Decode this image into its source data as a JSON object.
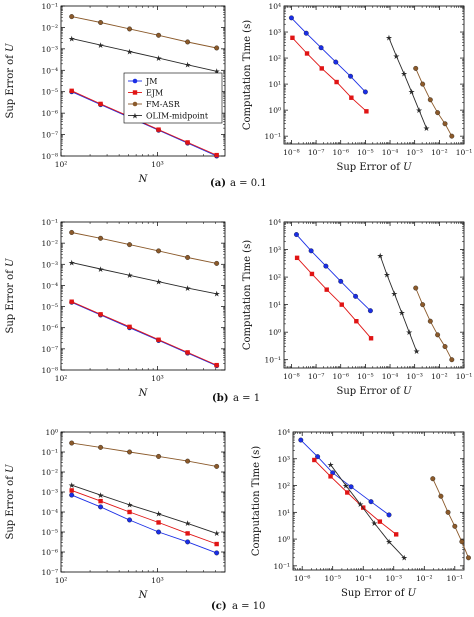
{
  "colors": {
    "JM": "#1a2ee6",
    "EJM": "#e01414",
    "FM-ASR": "#8b5a2b",
    "OLIM-midpoint": "#2a2a2a"
  },
  "legend": [
    "JM",
    "EJM",
    "FM-ASR",
    "OLIM-midpoint"
  ],
  "chart_data": [
    {
      "panel": "a-left",
      "type": "line",
      "xscale": "log",
      "yscale": "log",
      "xlim": [
        100,
        5000
      ],
      "ylim": [
        1e-08,
        0.1
      ],
      "xlabel": "N",
      "ylabel": "Sup Error of U",
      "xticks": [
        100,
        1000
      ],
      "yticks": [
        1e-08,
        1e-07,
        1e-06,
        1e-05,
        0.0001,
        0.001,
        0.01,
        0.1
      ],
      "legend_position": "center-right",
      "series": [
        {
          "name": "JM",
          "x": [
            129,
            257,
            513,
            1025,
            2049,
            4097
          ],
          "y": [
            1e-05,
            2.5e-06,
            6.3e-07,
            1.6e-07,
            4e-08,
            1e-08
          ]
        },
        {
          "name": "EJM",
          "x": [
            129,
            257,
            513,
            1025,
            2049,
            4097
          ],
          "y": [
            1.1e-05,
            2.7e-06,
            6.8e-07,
            1.7e-07,
            4.3e-08,
            1.1e-08
          ]
        },
        {
          "name": "FM-ASR",
          "x": [
            129,
            257,
            513,
            1025,
            2049,
            4097
          ],
          "y": [
            0.032,
            0.017,
            0.0085,
            0.0043,
            0.0021,
            0.0011
          ]
        },
        {
          "name": "OLIM-midpoint",
          "x": [
            129,
            257,
            513,
            1025,
            2049,
            4097
          ],
          "y": [
            0.003,
            0.0015,
            0.00075,
            0.00037,
            0.00018,
            9e-05
          ]
        }
      ]
    },
    {
      "panel": "a-right",
      "type": "line",
      "xscale": "log",
      "yscale": "log",
      "xlim": [
        5e-09,
        0.1
      ],
      "ylim": [
        0.05,
        10000
      ],
      "xlabel": "Sup Error of U",
      "ylabel": "Computation Time (s)",
      "xticks": [
        1e-08,
        1e-07,
        1e-06,
        1e-05,
        0.0001,
        0.001,
        0.01,
        0.1
      ],
      "yticks": [
        0.1,
        1,
        10,
        100,
        1000,
        10000
      ],
      "series": [
        {
          "name": "JM",
          "x": [
            1e-08,
            4e-08,
            1.6e-07,
            6.3e-07,
            2.5e-06,
            1e-05
          ],
          "y": [
            3500,
            900,
            250,
            70,
            20,
            5
          ]
        },
        {
          "name": "EJM",
          "x": [
            1.1e-08,
            4.3e-08,
            1.7e-07,
            6.8e-07,
            2.7e-06,
            1.1e-05
          ],
          "y": [
            600,
            150,
            40,
            12,
            3,
            0.9
          ]
        },
        {
          "name": "FM-ASR",
          "x": [
            0.0011,
            0.0021,
            0.0043,
            0.0085,
            0.017,
            0.032
          ],
          "y": [
            40,
            10,
            2.5,
            0.8,
            0.3,
            0.1
          ]
        },
        {
          "name": "OLIM-midpoint",
          "x": [
            9e-05,
            0.00018,
            0.00037,
            0.00075,
            0.0015,
            0.003
          ],
          "y": [
            600,
            120,
            25,
            5,
            1.0,
            0.2
          ]
        }
      ]
    },
    {
      "panel": "b-left",
      "type": "line",
      "xscale": "log",
      "yscale": "log",
      "xlim": [
        100,
        5000
      ],
      "ylim": [
        1e-08,
        0.1
      ],
      "xlabel": "N",
      "ylabel": "Sup Error of U",
      "xticks": [
        100,
        1000
      ],
      "yticks": [
        1e-08,
        1e-07,
        1e-06,
        1e-05,
        0.0001,
        0.001,
        0.01,
        0.1
      ],
      "series": [
        {
          "name": "JM",
          "x": [
            129,
            257,
            513,
            1025,
            2049,
            4097
          ],
          "y": [
            1.6e-05,
            4e-06,
            1e-06,
            2.5e-07,
            6.3e-08,
            1.6e-08
          ]
        },
        {
          "name": "EJM",
          "x": [
            129,
            257,
            513,
            1025,
            2049,
            4097
          ],
          "y": [
            1.7e-05,
            4.3e-06,
            1.1e-06,
            2.7e-07,
            6.8e-08,
            1.7e-08
          ]
        },
        {
          "name": "FM-ASR",
          "x": [
            129,
            257,
            513,
            1025,
            2049,
            4097
          ],
          "y": [
            0.032,
            0.017,
            0.0085,
            0.0043,
            0.0021,
            0.0011
          ]
        },
        {
          "name": "OLIM-midpoint",
          "x": [
            129,
            257,
            513,
            1025,
            2049,
            4097
          ],
          "y": [
            0.0012,
            0.0006,
            0.0003,
            0.00015,
            7.5e-05,
            4e-05
          ]
        }
      ]
    },
    {
      "panel": "b-right",
      "type": "line",
      "xscale": "log",
      "yscale": "log",
      "xlim": [
        5e-09,
        0.1
      ],
      "ylim": [
        0.05,
        10000
      ],
      "xlabel": "Sup Error of U",
      "ylabel": "Computation Time (s)",
      "xticks": [
        1e-08,
        1e-07,
        1e-06,
        1e-05,
        0.0001,
        0.001,
        0.01,
        0.1
      ],
      "yticks": [
        0.1,
        1,
        10,
        100,
        1000,
        10000
      ],
      "series": [
        {
          "name": "JM",
          "x": [
            1.6e-08,
            6.3e-08,
            2.5e-07,
            1e-06,
            4e-06,
            1.6e-05
          ],
          "y": [
            3500,
            900,
            250,
            70,
            20,
            6
          ]
        },
        {
          "name": "EJM",
          "x": [
            1.7e-08,
            6.8e-08,
            2.7e-07,
            1.1e-06,
            4.3e-06,
            1.7e-05
          ],
          "y": [
            500,
            130,
            35,
            10,
            2.5,
            0.6
          ]
        },
        {
          "name": "FM-ASR",
          "x": [
            0.0011,
            0.0021,
            0.0043,
            0.0085,
            0.017,
            0.032
          ],
          "y": [
            40,
            10,
            2.5,
            0.8,
            0.3,
            0.1
          ]
        },
        {
          "name": "OLIM-midpoint",
          "x": [
            4e-05,
            7.5e-05,
            0.00015,
            0.0003,
            0.0006,
            0.0012
          ],
          "y": [
            600,
            120,
            25,
            5,
            1.0,
            0.2
          ]
        }
      ]
    },
    {
      "panel": "c-left",
      "type": "line",
      "xscale": "log",
      "yscale": "log",
      "xlim": [
        100,
        5000
      ],
      "ylim": [
        1e-07,
        1
      ],
      "xlabel": "N",
      "ylabel": "Sup Error of U",
      "xticks": [
        100,
        1000
      ],
      "yticks": [
        1e-07,
        1e-06,
        1e-05,
        0.0001,
        0.001,
        0.01,
        0.1,
        1
      ],
      "series": [
        {
          "name": "JM",
          "x": [
            129,
            257,
            513,
            1025,
            2049,
            4097
          ],
          "y": [
            0.0007,
            0.00018,
            4e-05,
            1e-05,
            3.2e-06,
            9e-07
          ]
        },
        {
          "name": "EJM",
          "x": [
            129,
            257,
            513,
            1025,
            2049,
            4097
          ],
          "y": [
            0.0012,
            0.00035,
            0.0001,
            3e-05,
            8.5e-06,
            2.5e-06
          ]
        },
        {
          "name": "FM-ASR",
          "x": [
            129,
            257,
            513,
            1025,
            2049,
            4097
          ],
          "y": [
            0.28,
            0.17,
            0.1,
            0.06,
            0.035,
            0.019
          ]
        },
        {
          "name": "OLIM-midpoint",
          "x": [
            129,
            257,
            513,
            1025,
            2049,
            4097
          ],
          "y": [
            0.0022,
            0.0007,
            0.00023,
            8e-05,
            2.7e-05,
            8.5e-06
          ]
        }
      ]
    },
    {
      "panel": "c-right",
      "type": "line",
      "xscale": "log",
      "yscale": "log",
      "xlim": [
        5e-07,
        0.2
      ],
      "ylim": [
        0.07,
        10000
      ],
      "xlabel": "Sup Error of U",
      "ylabel": "Computation Time (s)",
      "xticks": [
        1e-06,
        1e-05,
        0.0001,
        0.001,
        0.01,
        0.1
      ],
      "yticks": [
        0.1,
        1,
        10,
        100,
        1000,
        10000
      ],
      "series": [
        {
          "name": "JM",
          "x": [
            9e-07,
            3.2e-06,
            1e-05,
            4e-05,
            0.00018,
            0.0007
          ],
          "y": [
            5000,
            1200,
            300,
            90,
            25,
            8
          ]
        },
        {
          "name": "EJM",
          "x": [
            2.5e-06,
            8.5e-06,
            3e-05,
            0.0001,
            0.00035,
            0.0012
          ],
          "y": [
            900,
            220,
            55,
            15,
            4.5,
            1.5
          ]
        },
        {
          "name": "FM-ASR",
          "x": [
            0.019,
            0.035,
            0.06,
            0.1,
            0.17,
            0.28
          ],
          "y": [
            180,
            40,
            10,
            3,
            0.8,
            0.2
          ]
        },
        {
          "name": "OLIM-midpoint",
          "x": [
            8.5e-06,
            2.7e-05,
            8e-05,
            0.00023,
            0.0007,
            0.0022
          ],
          "y": [
            600,
            100,
            20,
            4,
            0.8,
            0.2
          ]
        }
      ]
    }
  ],
  "captions": [
    {
      "label": "(a)",
      "text": "a = 0.1"
    },
    {
      "label": "(b)",
      "text": "a = 1"
    },
    {
      "label": "(c)",
      "text": "a = 10"
    }
  ]
}
